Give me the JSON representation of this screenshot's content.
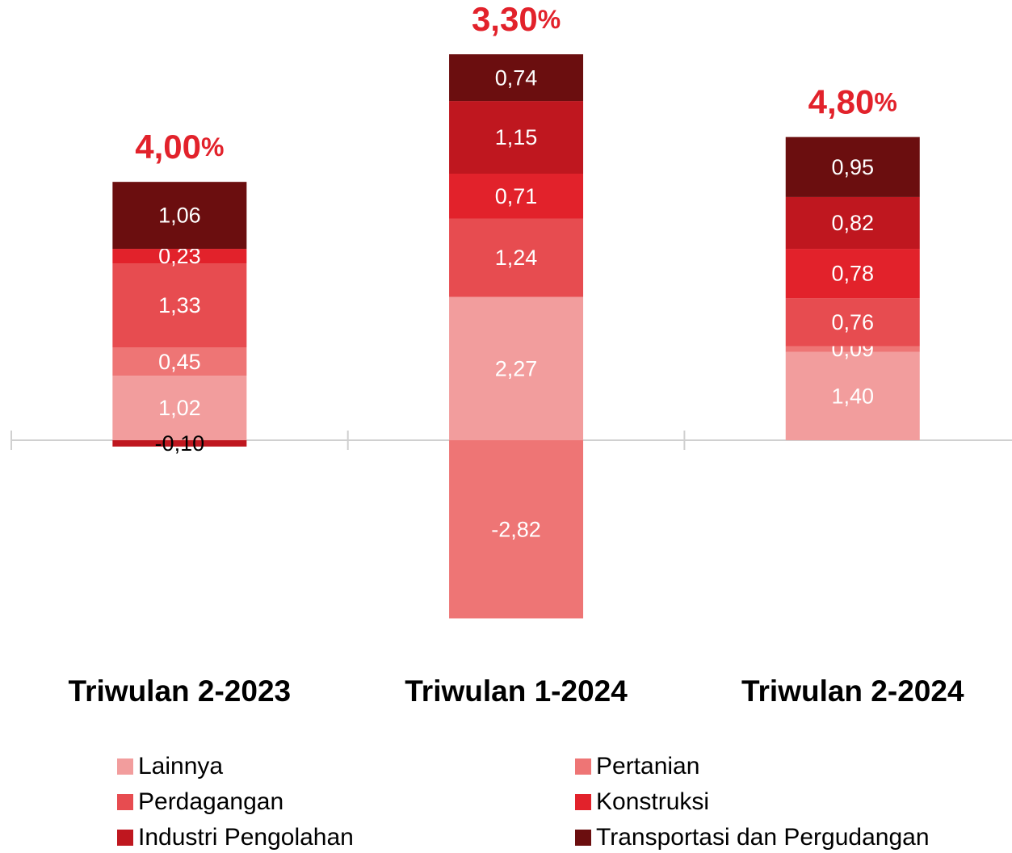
{
  "chart_data": {
    "type": "stacked_bar",
    "categories": [
      "Triwulan 2-2023",
      "Triwulan 1-2024",
      "Triwulan 2-2024"
    ],
    "total_labels": [
      "4,00",
      "3,30",
      "4,80"
    ],
    "total_unit": "%",
    "series": [
      {
        "name": "Lainnya",
        "color": "#f29d9d",
        "values": [
          1.02,
          2.27,
          1.4
        ],
        "value_labels": [
          "1,02",
          "2,27",
          "1,40"
        ]
      },
      {
        "name": "Pertanian",
        "color": "#ee7575",
        "values": [
          0.45,
          -2.82,
          0.09
        ],
        "value_labels": [
          "0,45",
          "-2,82",
          "0,09"
        ]
      },
      {
        "name": "Perdagangan",
        "color": "#e74c50",
        "values": [
          1.33,
          1.24,
          0.76
        ],
        "value_labels": [
          "1,33",
          "1,24",
          "0,76"
        ]
      },
      {
        "name": "Konstruksi",
        "color": "#e2222b",
        "values": [
          0.23,
          0.71,
          0.78
        ],
        "value_labels": [
          "0,23",
          "0,71",
          "0,78"
        ]
      },
      {
        "name": "Industri Pengolahan",
        "color": "#bf171f",
        "values": [
          -0.1,
          1.15,
          0.82
        ],
        "value_labels": [
          "-0,10",
          "1,15",
          "0,82"
        ]
      },
      {
        "name": "Transportasi dan Pergudangan",
        "color": "#6b0e0f",
        "values": [
          1.06,
          0.74,
          0.95
        ],
        "value_labels": [
          "1,06",
          "0,74",
          "0,95"
        ]
      }
    ],
    "ylim": [
      -3,
      6.5
    ]
  }
}
